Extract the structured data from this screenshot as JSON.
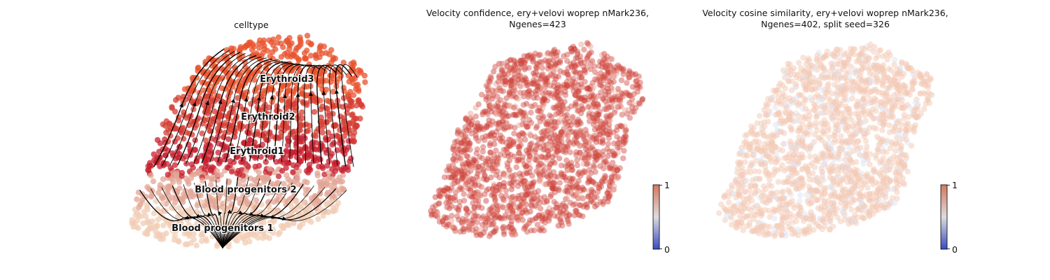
{
  "chart_data": [
    {
      "type": "scatter",
      "variant": "umap-embedding-with-velocity-streamlines",
      "title": "celltype",
      "color_by": "celltype",
      "axes_visible": false,
      "grid": false,
      "streamlines": true,
      "clusters": [
        {
          "label": "Erythroid3",
          "color": "#e8532e"
        },
        {
          "label": "Erythroid2",
          "color": "#d63d33"
        },
        {
          "label": "Erythroid1",
          "color": "#c7222f"
        },
        {
          "label": "Blood progenitors 2",
          "color": "#e3a595"
        },
        {
          "label": "Blood progenitors 1",
          "color": "#f2cdb6"
        }
      ]
    },
    {
      "type": "scatter",
      "variant": "umap-embedding",
      "title_lines": [
        "Velocity confidence, ery+velovi woprep nMark236,",
        "Ngenes=423"
      ],
      "color_by": "velocity confidence",
      "axes_visible": false,
      "grid": false,
      "colorbar": {
        "min_label": "0",
        "max_label": "1",
        "cmap": "coolwarm",
        "placement": "bottom-right"
      },
      "typical_value": 0.95,
      "point_color": "#d04a40"
    },
    {
      "type": "scatter",
      "variant": "umap-embedding",
      "title_lines": [
        "Velocity cosine similarity, ery+velovi woprep nMark236,",
        "Ngenes=402, split seed=326"
      ],
      "color_by": "velocity cosine similarity",
      "axes_visible": false,
      "grid": false,
      "colorbar": {
        "min_label": "0",
        "max_label": "1",
        "cmap": "coolwarm",
        "placement": "bottom-right"
      },
      "typical_value": 0.65,
      "point_color": "#f4c9b5",
      "minor_color": "#dfe3f2"
    }
  ]
}
